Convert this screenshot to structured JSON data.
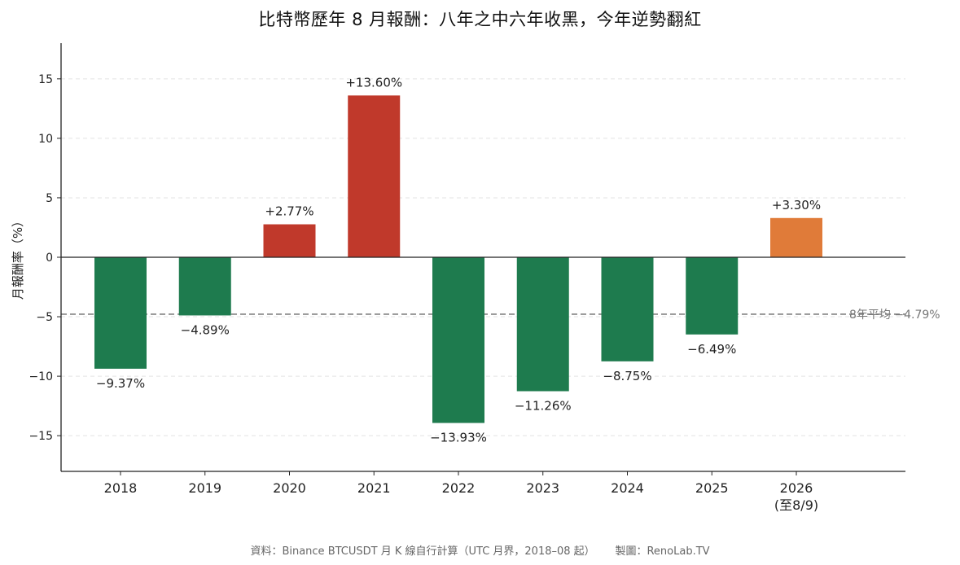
{
  "chart_data": {
    "type": "bar",
    "title": "比特幣歷年 8 月報酬：八年之中六年收黑，今年逆勢翻紅",
    "ylabel": "月報酬率（%）",
    "xlabel": "",
    "ylim": [
      -18,
      18
    ],
    "yticks": [
      -15,
      -10,
      -5,
      0,
      5,
      10,
      15
    ],
    "ytick_labels": [
      "−15",
      "−10",
      "−5",
      "0",
      "5",
      "10",
      "15"
    ],
    "grid": "horizontal dashed",
    "categories": [
      "2018",
      "2019",
      "2020",
      "2021",
      "2022",
      "2023",
      "2024",
      "2025",
      "2026"
    ],
    "category_sublabels": [
      "",
      "",
      "",
      "",
      "",
      "",
      "",
      "",
      "(至8/9)"
    ],
    "values": [
      -9.37,
      -4.89,
      2.77,
      13.6,
      -13.93,
      -11.26,
      -8.75,
      -6.49,
      3.3
    ],
    "value_labels": [
      "−9.37%",
      "−4.89%",
      "+2.77%",
      "+13.60%",
      "−13.93%",
      "−11.26%",
      "−8.75%",
      "−6.49%",
      "+3.30%"
    ],
    "reference_line": {
      "value": -4.79,
      "label": "8年平均 −4.79%"
    },
    "colors": {
      "negative": "#1e7b4e",
      "positive": "#c0392b",
      "current_year": "#e07b39",
      "average_line": "#808080"
    },
    "footer": {
      "source": "資料：Binance BTCUSDT 月 K 線自行計算（UTC 月界，2018–08 起）",
      "credit": "製圖：RenoLab.TV"
    }
  }
}
